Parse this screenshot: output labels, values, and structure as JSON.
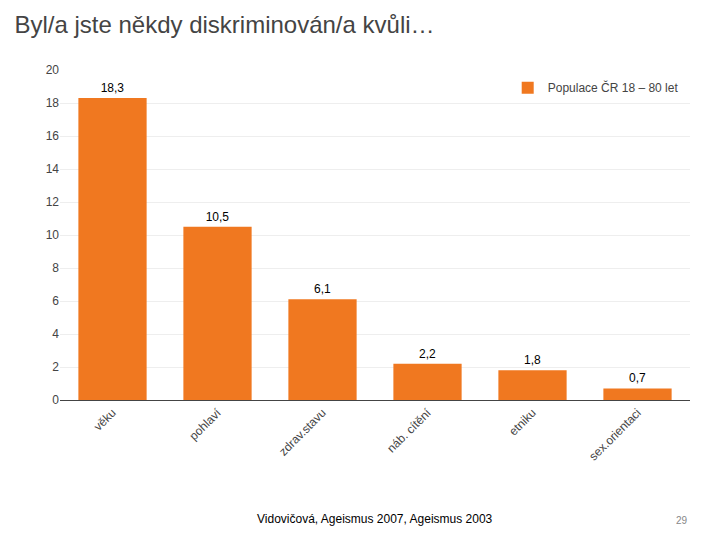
{
  "chart_data": {
    "type": "bar",
    "title": "Byl/a jste někdy diskriminován/a kvůli…",
    "categories": [
      "věku",
      "pohlaví",
      "zdrav.stavu",
      "náb. cítění",
      "etniku",
      "sex.orientaci"
    ],
    "series": [
      {
        "name": "Populace ČR 18 – 80 let",
        "color": "#F07820",
        "values": [
          18.3,
          10.5,
          6.1,
          2.2,
          1.8,
          0.7
        ],
        "value_labels": [
          "18,3",
          "10,5",
          "6,1",
          "2,2",
          "1,8",
          "0,7"
        ]
      }
    ],
    "ylim": [
      0,
      20
    ],
    "yticks": [
      0,
      2,
      4,
      6,
      8,
      10,
      12,
      14,
      16,
      18,
      20
    ],
    "grid": true,
    "legend": "upper right",
    "data_labels": true,
    "annotations": [
      {
        "text": "Vidovičová, Ageismus 2007, Ageismus 2003"
      },
      {
        "text": "29"
      }
    ]
  }
}
